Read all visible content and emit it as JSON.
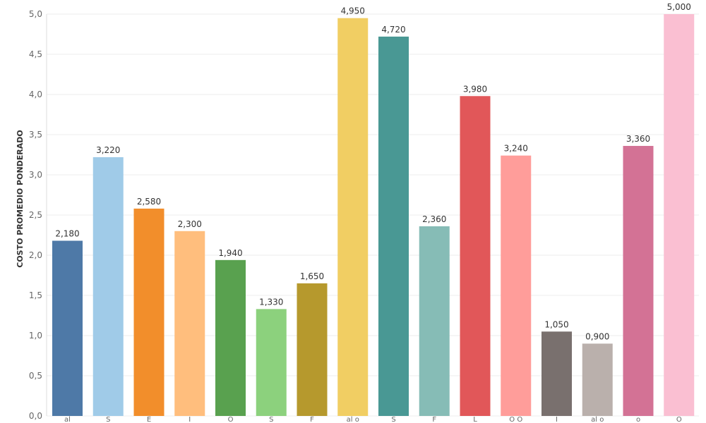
{
  "chart_data": {
    "type": "bar",
    "ylabel": "COSTO PROMEDIO PONDERADO",
    "ylim": [
      0,
      5.0
    ],
    "yticks": [
      "0,0",
      "0,5",
      "1,0",
      "1,5",
      "2,0",
      "2,5",
      "3,0",
      "3,5",
      "4,0",
      "4,5",
      "5,0"
    ],
    "ytick_values": [
      0,
      0.5,
      1.0,
      1.5,
      2.0,
      2.5,
      3.0,
      3.5,
      4.0,
      4.5,
      5.0
    ],
    "grid": true,
    "bars": [
      {
        "value": 2.18,
        "label": "2,180",
        "tick": "al",
        "color": "#4e79a7"
      },
      {
        "value": 3.22,
        "label": "3,220",
        "tick": "S",
        "color": "#a0cbe8"
      },
      {
        "value": 2.58,
        "label": "2,580",
        "tick": "E",
        "color": "#f28e2b"
      },
      {
        "value": 2.3,
        "label": "2,300",
        "tick": "I",
        "color": "#ffbe7d"
      },
      {
        "value": 1.94,
        "label": "1,940",
        "tick": "O",
        "color": "#59a14f"
      },
      {
        "value": 1.33,
        "label": "1,330",
        "tick": "S",
        "color": "#8cd17d"
      },
      {
        "value": 1.65,
        "label": "1,650",
        "tick": "F",
        "color": "#b6992d"
      },
      {
        "value": 4.95,
        "label": "4,950",
        "tick": "al o",
        "color": "#f1ce63"
      },
      {
        "value": 4.72,
        "label": "4,720",
        "tick": "S",
        "color": "#499894"
      },
      {
        "value": 2.36,
        "label": "2,360",
        "tick": "F",
        "color": "#86bcb6"
      },
      {
        "value": 3.98,
        "label": "3,980",
        "tick": "L",
        "color": "#e15759"
      },
      {
        "value": 3.24,
        "label": "3,240",
        "tick": "O O",
        "color": "#ff9d9a"
      },
      {
        "value": 1.05,
        "label": "1,050",
        "tick": "I",
        "color": "#79706e"
      },
      {
        "value": 0.9,
        "label": "0,900",
        "tick": "al o",
        "color": "#bab0ac"
      },
      {
        "value": 3.36,
        "label": "3,360",
        "tick": "o",
        "color": "#d37295"
      },
      {
        "value": 5.0,
        "label": "5,000",
        "tick": "O",
        "color": "#fabfd2"
      }
    ]
  }
}
